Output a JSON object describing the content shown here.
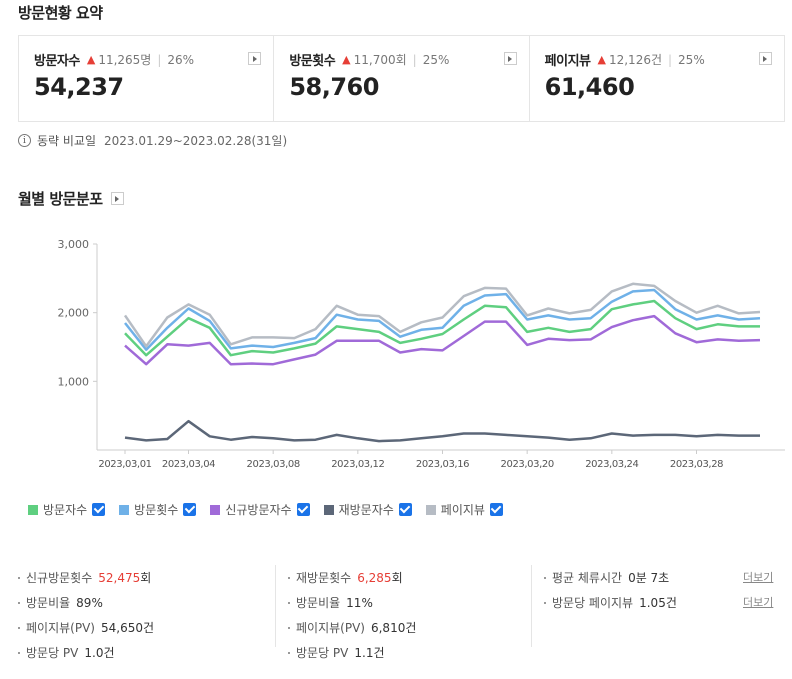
{
  "summary": {
    "title": "방문현황 요약",
    "cards": [
      {
        "label": "방문자수",
        "delta": "11,265명",
        "pct": "26%",
        "value": "54,237"
      },
      {
        "label": "방문횟수",
        "delta": "11,700회",
        "pct": "25%",
        "value": "58,760"
      },
      {
        "label": "페이지뷰",
        "delta": "12,126건",
        "pct": "25%",
        "value": "61,460"
      }
    ],
    "compare_label": "동략 비교일",
    "compare_range": "2023.01.29~2023.02.28(31일)"
  },
  "chart_section": {
    "title": "월별 방문분포"
  },
  "chart_data": {
    "type": "line",
    "title": "월별 방문분포",
    "ylim": [
      0,
      3000
    ],
    "yticks": [
      1000,
      2000,
      3000
    ],
    "ytick_labels": [
      "1,000",
      "2,000",
      "3,000"
    ],
    "x": [
      "2023.03.01",
      "2023.03.02",
      "2023.03.03",
      "2023.03.04",
      "2023.03.05",
      "2023.03.06",
      "2023.03.07",
      "2023.03.08",
      "2023.03.09",
      "2023.03.10",
      "2023.03.11",
      "2023.03.12",
      "2023.03.13",
      "2023.03.14",
      "2023.03.15",
      "2023.03.16",
      "2023.03.17",
      "2023.03.18",
      "2023.03.19",
      "2023.03.20",
      "2023.03.21",
      "2023.03.22",
      "2023.03.23",
      "2023.03.24",
      "2023.03.25",
      "2023.03.26",
      "2023.03.27",
      "2023.03.28",
      "2023.03.29",
      "2023.03.30",
      "2023.03.31"
    ],
    "xtick_labels": [
      "2023.03.01",
      "2023.03.04",
      "2023.03.08",
      "2023.03.12",
      "2023.03.16",
      "2023.03.20",
      "2023.03.24",
      "2023.03.28"
    ],
    "series": [
      {
        "name": "방문자수",
        "color": "#5fcf80",
        "values": [
          1700,
          1380,
          1650,
          1920,
          1780,
          1380,
          1440,
          1420,
          1480,
          1550,
          1800,
          1760,
          1720,
          1560,
          1620,
          1690,
          1900,
          2100,
          2080,
          1720,
          1780,
          1720,
          1760,
          2050,
          2120,
          2170,
          1920,
          1760,
          1830,
          1800,
          1800
        ]
      },
      {
        "name": "방문횟수",
        "color": "#6fb1e8",
        "values": [
          1850,
          1460,
          1780,
          2060,
          1880,
          1480,
          1520,
          1500,
          1560,
          1630,
          1970,
          1900,
          1880,
          1650,
          1750,
          1780,
          2100,
          2250,
          2270,
          1900,
          1960,
          1900,
          1920,
          2160,
          2310,
          2330,
          2050,
          1900,
          1960,
          1900,
          1920
        ]
      },
      {
        "name": "신규방문자수",
        "color": "#a06ad8",
        "values": [
          1520,
          1250,
          1540,
          1520,
          1560,
          1250,
          1260,
          1250,
          1320,
          1390,
          1590,
          1590,
          1590,
          1420,
          1470,
          1450,
          1660,
          1870,
          1870,
          1530,
          1620,
          1600,
          1610,
          1790,
          1890,
          1950,
          1700,
          1570,
          1610,
          1590,
          1600
        ]
      },
      {
        "name": "재방문자수",
        "color": "#5c6778",
        "values": [
          180,
          140,
          160,
          420,
          200,
          150,
          190,
          170,
          140,
          150,
          220,
          170,
          130,
          140,
          170,
          200,
          240,
          240,
          220,
          200,
          180,
          150,
          170,
          240,
          210,
          220,
          220,
          200,
          220,
          210,
          210
        ]
      },
      {
        "name": "페이지뷰",
        "color": "#b6bcc4",
        "values": [
          1960,
          1510,
          1930,
          2120,
          1970,
          1540,
          1640,
          1640,
          1630,
          1760,
          2100,
          1970,
          1950,
          1720,
          1860,
          1930,
          2240,
          2360,
          2350,
          1960,
          2060,
          1990,
          2040,
          2310,
          2420,
          2390,
          2170,
          2000,
          2100,
          1990,
          2010
        ]
      }
    ]
  },
  "legend": {
    "items": [
      {
        "label": "방문자수",
        "color": "#5fcf80"
      },
      {
        "label": "방문횟수",
        "color": "#6fb1e8"
      },
      {
        "label": "신규방문자수",
        "color": "#a06ad8"
      },
      {
        "label": "재방문자수",
        "color": "#5c6778"
      },
      {
        "label": "페이지뷰",
        "color": "#b6bcc4"
      }
    ]
  },
  "stats": {
    "col1": [
      {
        "label": "신규방문횟수",
        "value": "52,475",
        "unit": "회",
        "highlight": true
      },
      {
        "label": "방문비율",
        "value": "89%",
        "unit": ""
      },
      {
        "label": "페이지뷰(PV)",
        "value": "54,650건",
        "unit": ""
      },
      {
        "label": "방문당 PV",
        "value": "1.0건",
        "unit": ""
      }
    ],
    "col2": [
      {
        "label": "재방문횟수",
        "value": "6,285",
        "unit": "회",
        "highlight": true
      },
      {
        "label": "방문비율",
        "value": "11%",
        "unit": ""
      },
      {
        "label": "페이지뷰(PV)",
        "value": "6,810건",
        "unit": ""
      },
      {
        "label": "방문당 PV",
        "value": "1.1건",
        "unit": ""
      }
    ],
    "col3": [
      {
        "label": "평균 체류시간",
        "value": "0분 7초",
        "unit": ""
      },
      {
        "label": "방문당 페이지뷰",
        "value": "1.05건",
        "unit": ""
      }
    ],
    "more_label": "더보기"
  }
}
